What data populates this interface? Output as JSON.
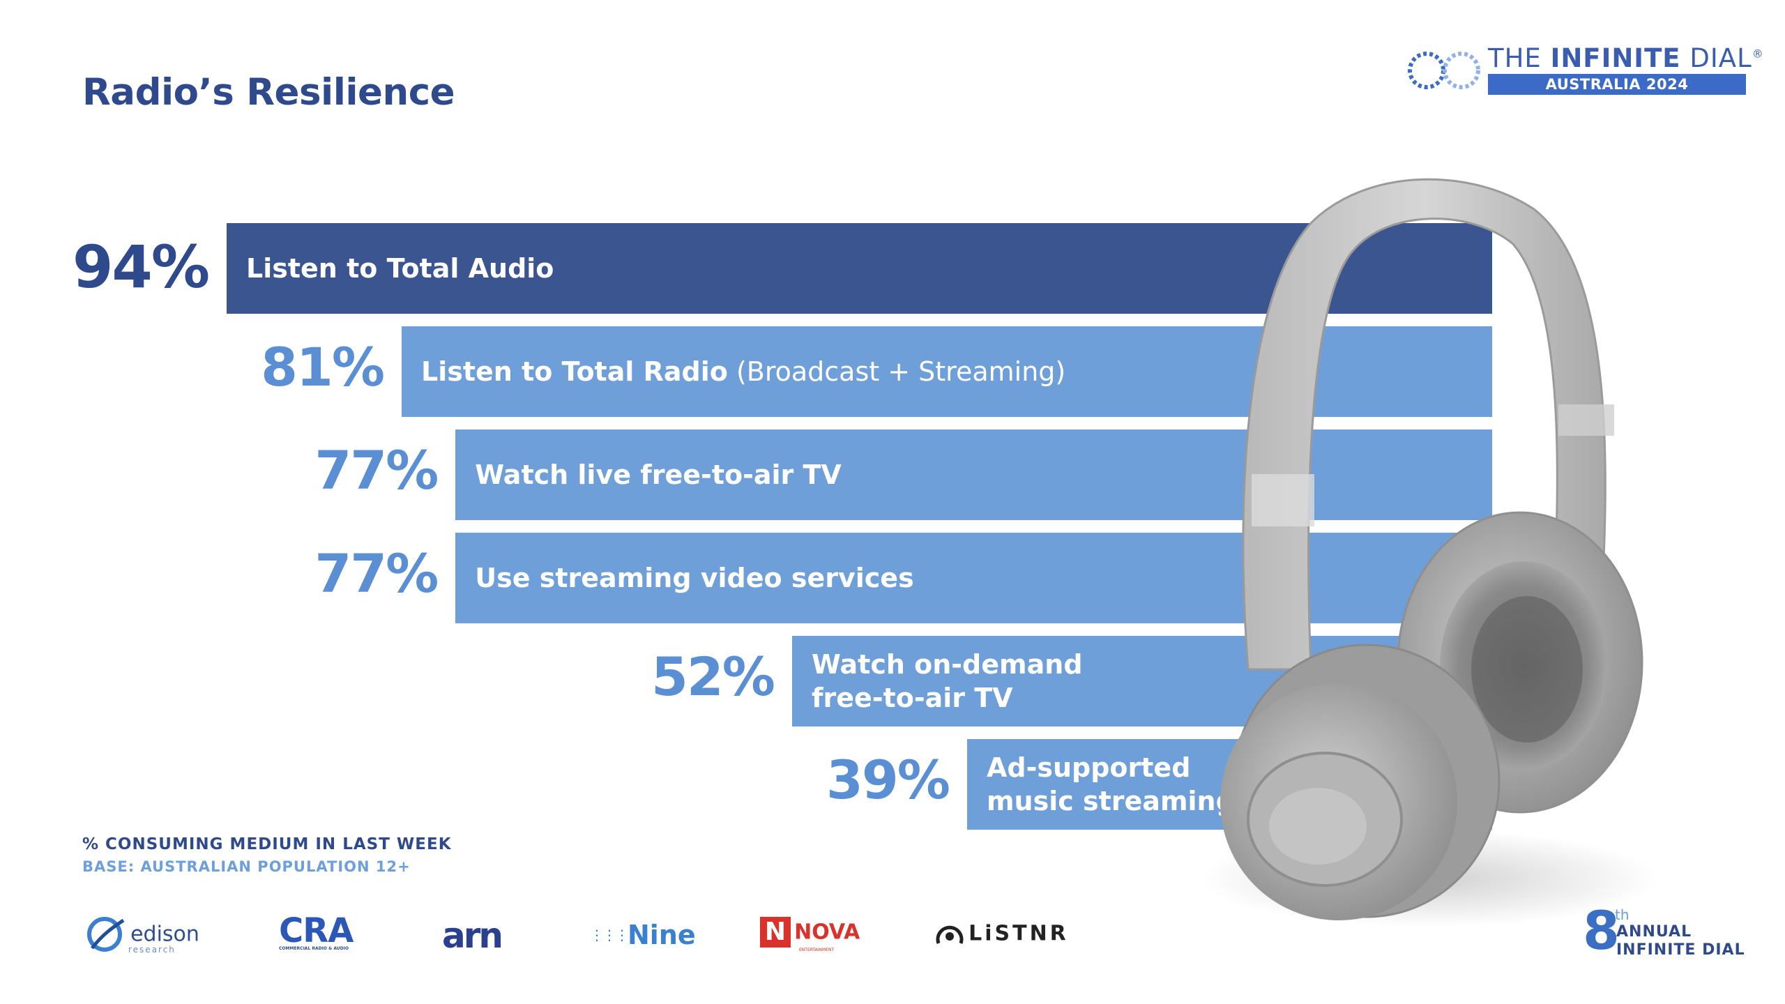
{
  "page": {
    "title": "Radio’s Resilience"
  },
  "brand": {
    "line1_light": "THE ",
    "line1_bold": "INFINITE",
    "line1_end": " DIAL",
    "reg": "®",
    "line2": "AUSTRALIA 2024"
  },
  "chart_data": {
    "type": "bar",
    "orientation": "horizontal",
    "categories": [
      "Listen to Total Audio",
      "Listen to Total Radio (Broadcast + Streaming)",
      "Watch live free-to-air TV",
      "Use streaming video services",
      "Watch on-demand free-to-air TV",
      "Ad-supported music streaming"
    ],
    "values": [
      94,
      81,
      77,
      77,
      52,
      39
    ],
    "value_labels": [
      "94%",
      "81%",
      "77%",
      "77%",
      "52%",
      "39%"
    ],
    "bar_labels": [
      {
        "bold": "Listen to Total Audio",
        "light": ""
      },
      {
        "bold": "Listen to Total Radio",
        "light": " (Broadcast + Streaming)"
      },
      {
        "bold": "Watch live free-to-air TV",
        "light": ""
      },
      {
        "bold": "Use streaming video services",
        "light": ""
      },
      {
        "bold": "Watch on-demand\nfree-to-air TV",
        "light": ""
      },
      {
        "bold": "Ad-supported\nmusic streaming",
        "light": ""
      }
    ],
    "colors": {
      "highlight": "#3b5590",
      "bar": "#6f9fd8",
      "highlight_pct": "#2f4a8c",
      "pct": "#5b8fd4"
    },
    "highlight_index": 0,
    "unit": "%"
  },
  "notes": {
    "line1": "% CONSUMING MEDIUM IN LAST WEEK",
    "line2": "BASE: AUSTRALIAN POPULATION 12+"
  },
  "sponsors": {
    "edison": "edison",
    "edison_sub": "research",
    "cra": "CRA",
    "cra_sub": "COMMERCIAL RADIO & AUDIO",
    "arn": "arn",
    "nine": "Nine",
    "nova_mark": "N",
    "nova": "NOVA",
    "nova_sub": "ENTERTAINMENT",
    "listnr": "LiSTNR"
  },
  "edition": {
    "number": "8",
    "suffix": "th",
    "line1": "ANNUAL",
    "line2": "INFINITE DIAL"
  }
}
